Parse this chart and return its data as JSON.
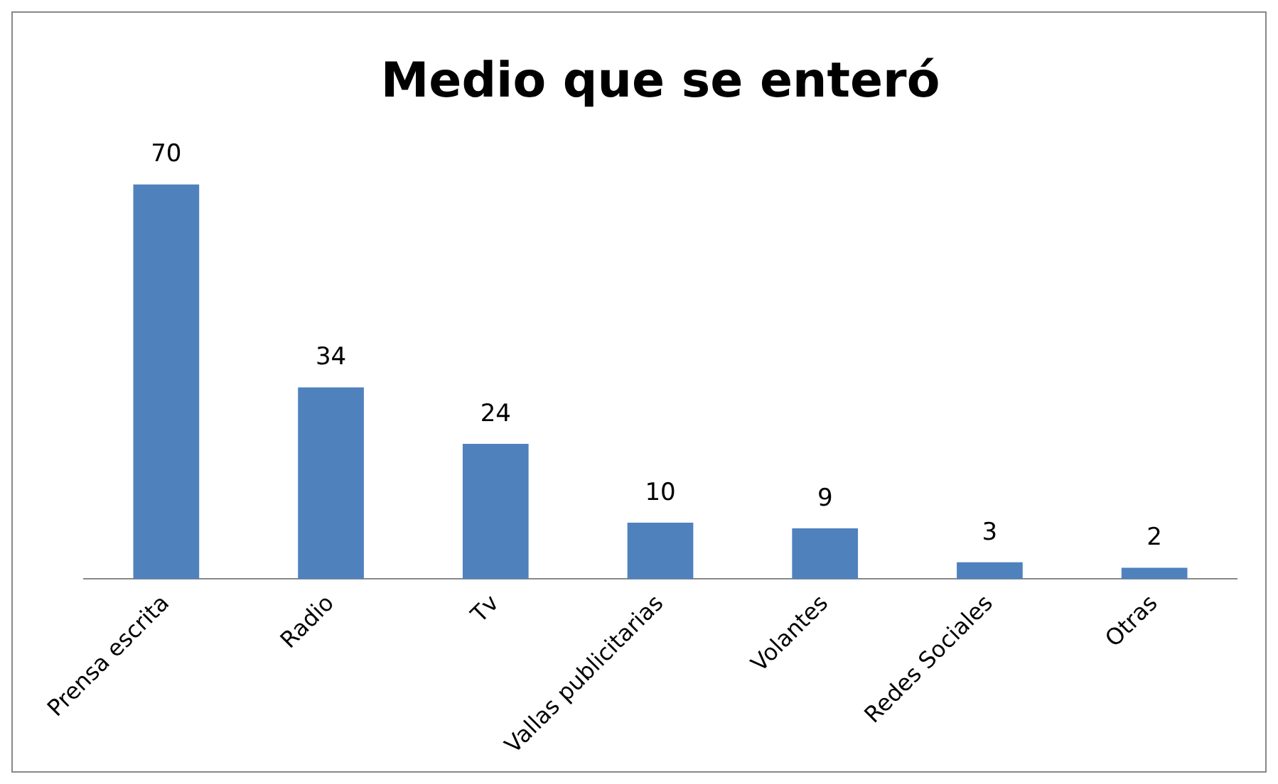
{
  "chart_data": {
    "type": "bar",
    "title": "Medio que se enteró",
    "categories": [
      "Prensa escrita",
      "Radio",
      "Tv",
      "Vallas publicitarias",
      "Volantes",
      "Redes Sociales",
      "Otras"
    ],
    "values": [
      70,
      34,
      24,
      10,
      9,
      3,
      2
    ],
    "color": "#4f81bd",
    "data_labels": true
  }
}
